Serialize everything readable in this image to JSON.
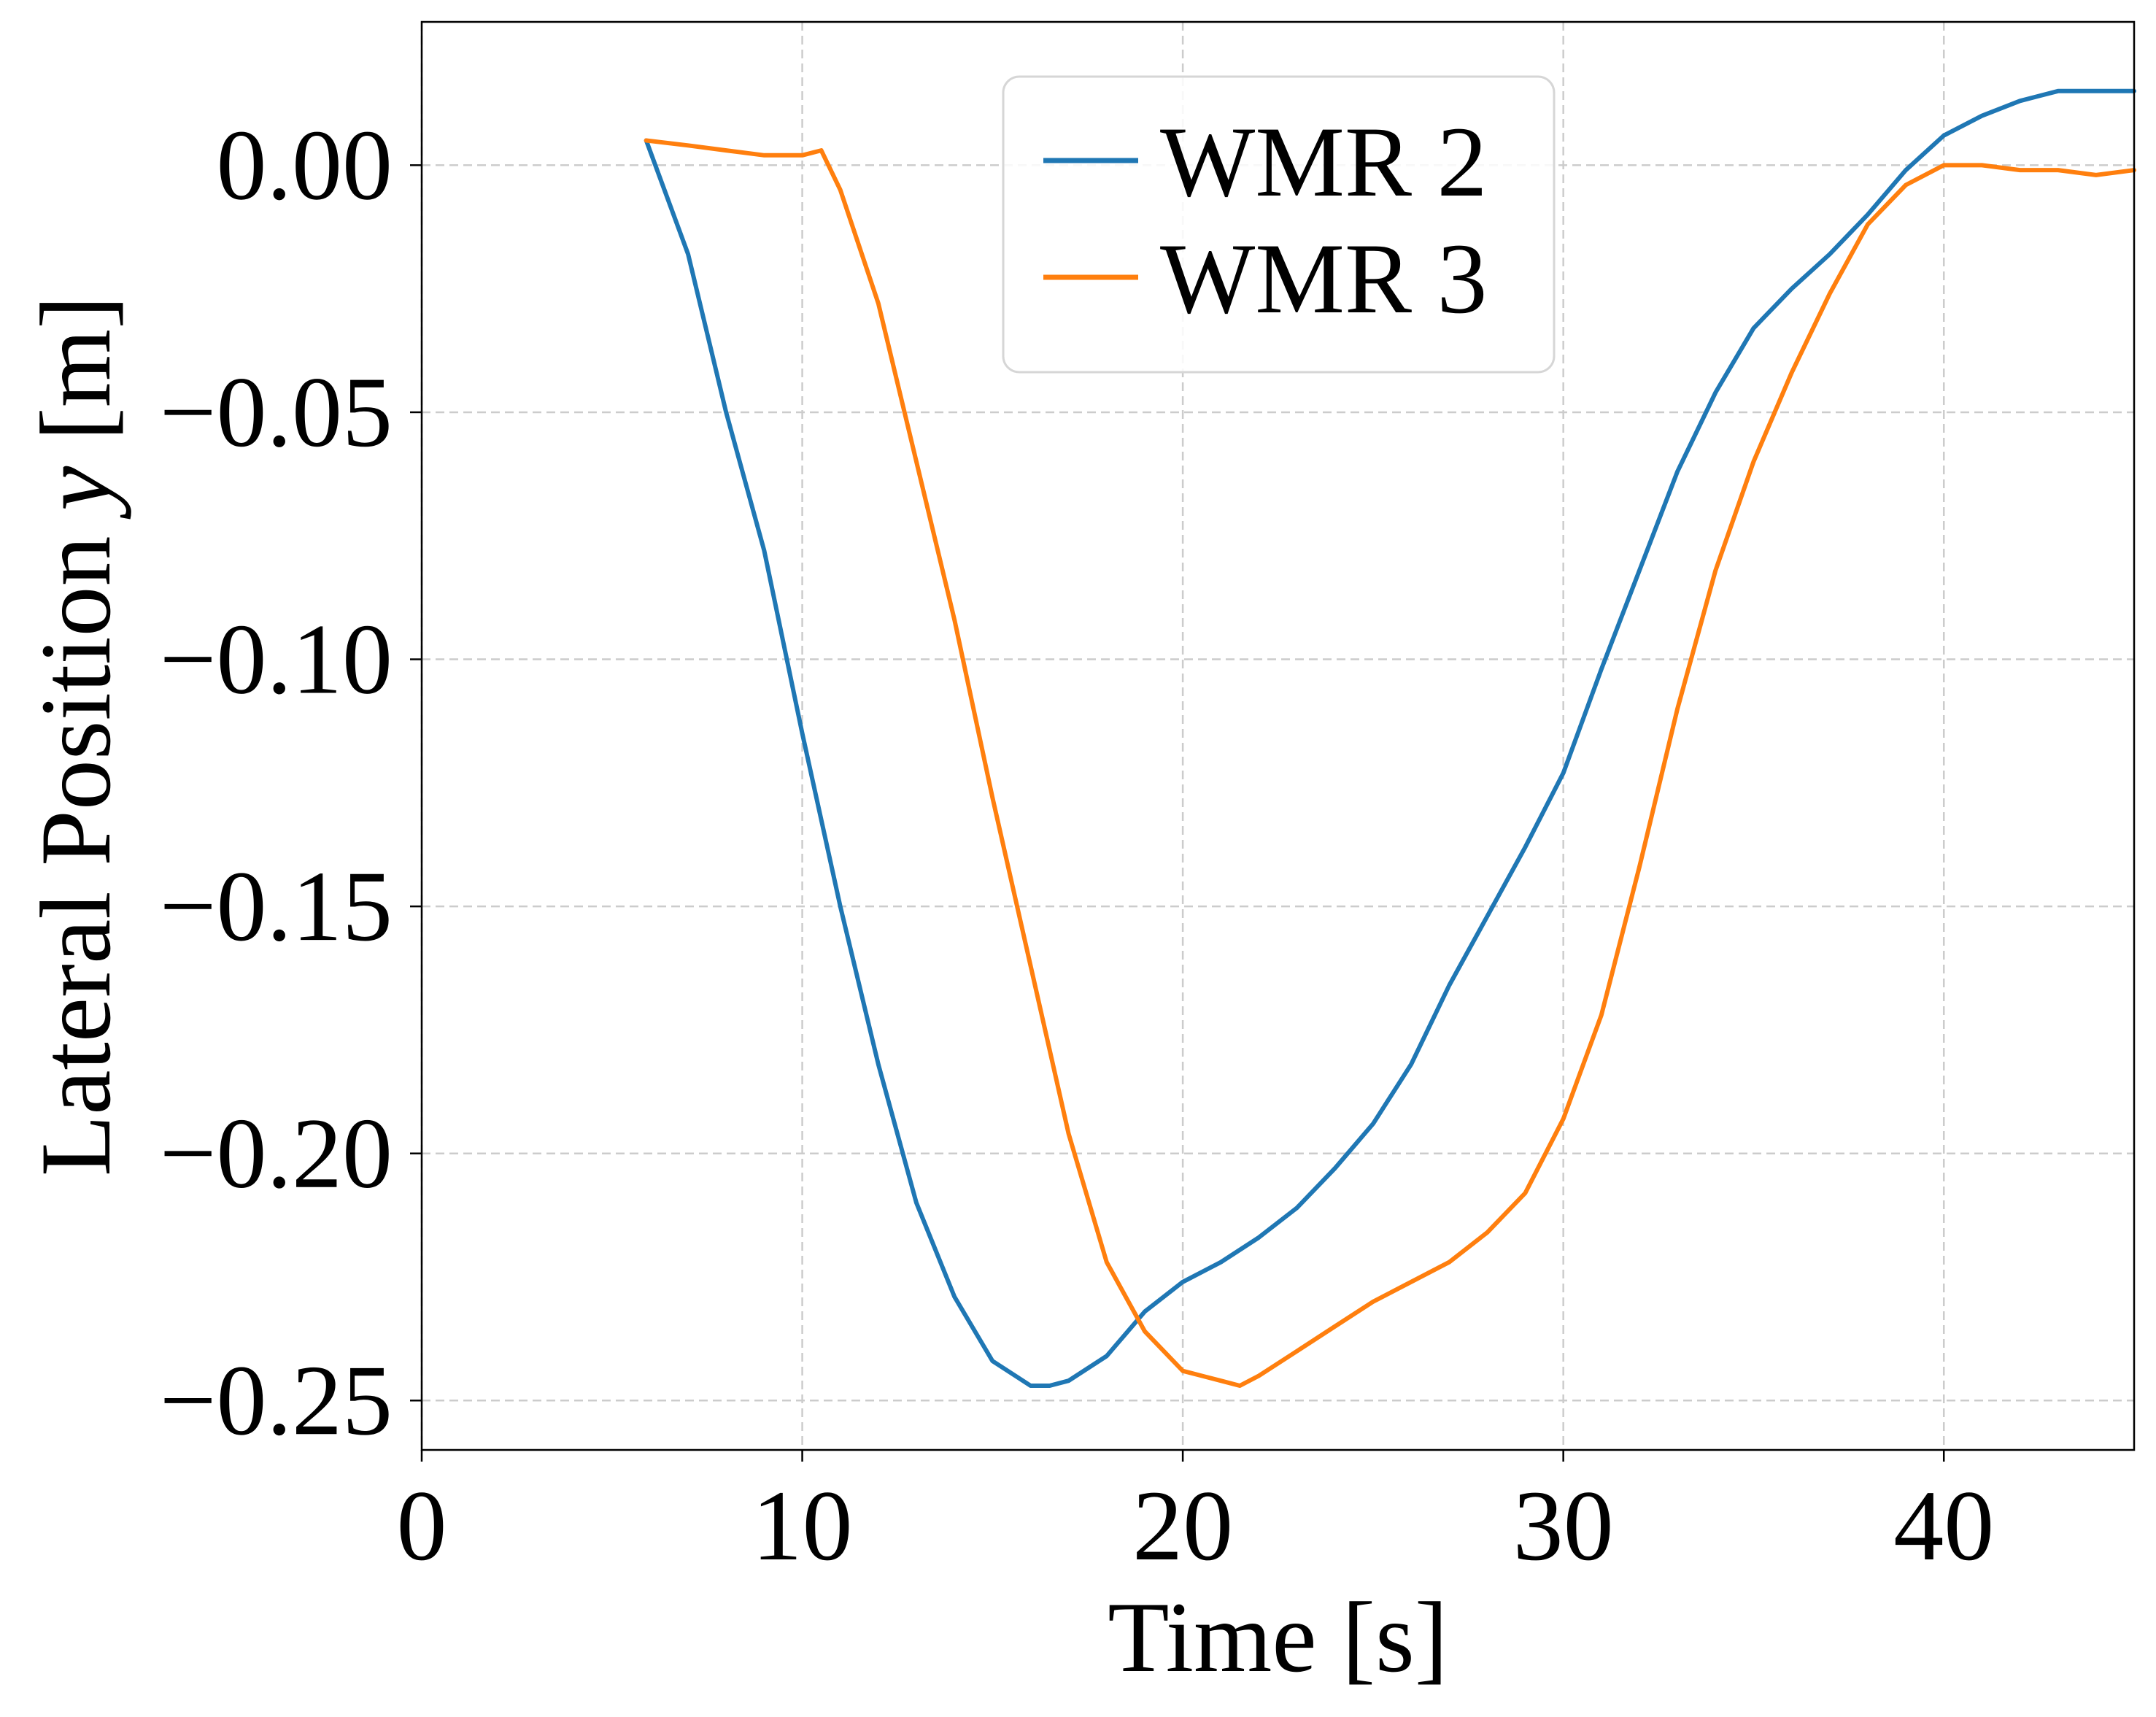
{
  "chart_data": {
    "type": "line",
    "xlabel": "Time [s]",
    "ylabel_prefix": "Lateral Position ",
    "ylabel_var": "y",
    "ylabel_suffix": " [m]",
    "xlim": [
      0,
      45
    ],
    "ylim": [
      -0.26,
      0.029
    ],
    "xticks": [
      0,
      10,
      20,
      30,
      40
    ],
    "xtick_labels": [
      "0",
      "10",
      "20",
      "30",
      "40"
    ],
    "yticks": [
      0.0,
      -0.05,
      -0.1,
      -0.15,
      -0.2,
      -0.25
    ],
    "ytick_labels": [
      "0.00",
      "−0.05",
      "−0.10",
      "−0.15",
      "−0.20",
      "−0.25"
    ],
    "grid": true,
    "legend_position": "top-center",
    "series": [
      {
        "name": "WMR 2",
        "color": "#1f77b4",
        "x": [
          5.9,
          7.0,
          8.0,
          9.0,
          10.0,
          11.0,
          12.0,
          13.0,
          14.0,
          15.0,
          16.0,
          16.5,
          17.0,
          18.0,
          19.0,
          20.0,
          21.0,
          22.0,
          23.0,
          24.0,
          25.0,
          26.0,
          27.0,
          28.0,
          29.0,
          30.0,
          31.0,
          32.0,
          33.0,
          34.0,
          35.0,
          36.0,
          37.0,
          38.0,
          39.0,
          40.0,
          41.0,
          42.0,
          43.0,
          44.0,
          45.0
        ],
        "y": [
          0.005,
          -0.018,
          -0.05,
          -0.078,
          -0.115,
          -0.15,
          -0.182,
          -0.21,
          -0.229,
          -0.242,
          -0.247,
          -0.247,
          -0.246,
          -0.241,
          -0.232,
          -0.226,
          -0.222,
          -0.217,
          -0.211,
          -0.203,
          -0.194,
          -0.182,
          -0.166,
          -0.152,
          -0.138,
          -0.123,
          -0.102,
          -0.082,
          -0.062,
          -0.046,
          -0.033,
          -0.025,
          -0.018,
          -0.01,
          -0.001,
          0.006,
          0.01,
          0.013,
          0.015,
          0.015,
          0.015
        ]
      },
      {
        "name": "WMR 3",
        "color": "#ff7f0e",
        "x": [
          5.9,
          7.0,
          8.0,
          9.0,
          10.0,
          10.5,
          11.0,
          12.0,
          13.0,
          14.0,
          15.0,
          16.0,
          17.0,
          18.0,
          19.0,
          20.0,
          21.0,
          21.5,
          22.0,
          23.0,
          24.0,
          25.0,
          26.0,
          27.0,
          28.0,
          29.0,
          30.0,
          31.0,
          32.0,
          33.0,
          34.0,
          35.0,
          36.0,
          37.0,
          38.0,
          39.0,
          40.0,
          41.0,
          42.0,
          43.0,
          44.0,
          45.0
        ],
        "y": [
          0.005,
          0.004,
          0.003,
          0.002,
          0.002,
          0.003,
          -0.005,
          -0.028,
          -0.06,
          -0.092,
          -0.128,
          -0.162,
          -0.196,
          -0.222,
          -0.236,
          -0.244,
          -0.246,
          -0.247,
          -0.245,
          -0.24,
          -0.235,
          -0.23,
          -0.226,
          -0.222,
          -0.216,
          -0.208,
          -0.193,
          -0.172,
          -0.142,
          -0.11,
          -0.082,
          -0.06,
          -0.042,
          -0.026,
          -0.012,
          -0.004,
          0.0,
          0.0,
          -0.001,
          -0.001,
          -0.002,
          -0.001
        ]
      }
    ]
  }
}
